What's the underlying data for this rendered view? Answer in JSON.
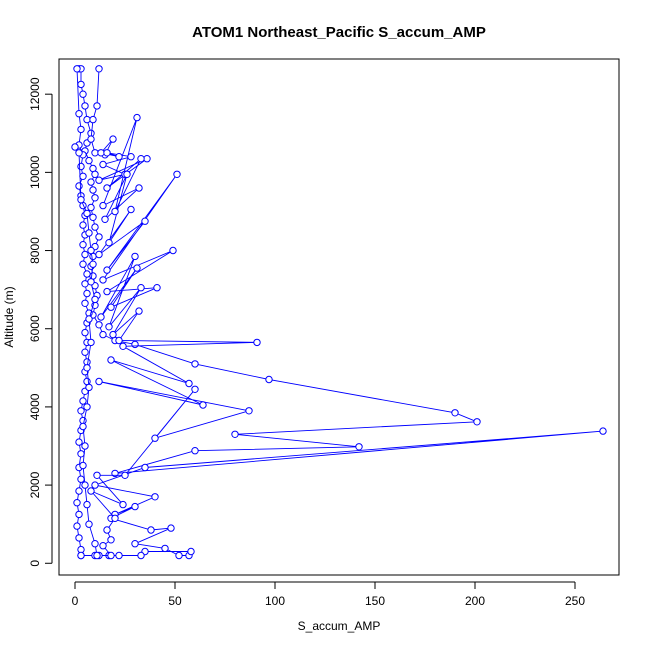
{
  "chart_data": {
    "type": "line",
    "title": "ATOM1 Northeast_Pacific S_accum_AMP",
    "xlabel": "S_accum_AMP",
    "ylabel": "Altitude (m)",
    "xlim": [
      -8,
      272
    ],
    "ylim": [
      -300,
      12900
    ],
    "xticks": [
      0,
      50,
      100,
      150,
      200,
      250
    ],
    "yticks": [
      0,
      2000,
      4000,
      6000,
      8000,
      10000,
      12000
    ],
    "grid": false,
    "legend": "none",
    "color": "#0000ff",
    "marker": "open-circle",
    "series": [
      {
        "values": [
          {
            "x": 2,
            "y": 12650
          },
          {
            "x": 3,
            "y": 12650
          },
          {
            "x": 3,
            "y": 12250
          },
          {
            "x": 4,
            "y": 12000
          },
          {
            "x": 5,
            "y": 11700
          },
          {
            "x": 6,
            "y": 11350
          },
          {
            "x": 8,
            "y": 11000
          },
          {
            "x": 6,
            "y": 10750
          },
          {
            "x": 5,
            "y": 10550
          },
          {
            "x": 7,
            "y": 10300
          },
          {
            "x": 9,
            "y": 10100
          },
          {
            "x": 10,
            "y": 9950
          },
          {
            "x": 8,
            "y": 9750
          },
          {
            "x": 9,
            "y": 9550
          },
          {
            "x": 10,
            "y": 9350
          },
          {
            "x": 8,
            "y": 9100
          },
          {
            "x": 9,
            "y": 8850
          },
          {
            "x": 10,
            "y": 8600
          },
          {
            "x": 12,
            "y": 8350
          },
          {
            "x": 10,
            "y": 8100
          },
          {
            "x": 9,
            "y": 7850
          },
          {
            "x": 8,
            "y": 7600
          },
          {
            "x": 9,
            "y": 7350
          },
          {
            "x": 10,
            "y": 7100
          },
          {
            "x": 11,
            "y": 6850
          },
          {
            "x": 10,
            "y": 6600
          },
          {
            "x": 9,
            "y": 6350
          },
          {
            "x": 12,
            "y": 6100
          },
          {
            "x": 14,
            "y": 5850
          },
          {
            "x": 20,
            "y": 5700
          },
          {
            "x": 30,
            "y": 5600
          },
          {
            "x": 60,
            "y": 5100
          },
          {
            "x": 97,
            "y": 4700
          },
          {
            "x": 190,
            "y": 3850
          },
          {
            "x": 201,
            "y": 3620
          },
          {
            "x": 80,
            "y": 3300
          },
          {
            "x": 142,
            "y": 2980
          },
          {
            "x": 60,
            "y": 2880
          },
          {
            "x": 20,
            "y": 2300
          },
          {
            "x": 264,
            "y": 3380
          },
          {
            "x": 35,
            "y": 2450
          },
          {
            "x": 10,
            "y": 2000
          },
          {
            "x": 40,
            "y": 1700
          },
          {
            "x": 20,
            "y": 1250
          },
          {
            "x": 30,
            "y": 1450
          },
          {
            "x": 18,
            "y": 1150
          },
          {
            "x": 38,
            "y": 850
          },
          {
            "x": 48,
            "y": 900
          },
          {
            "x": 30,
            "y": 500
          },
          {
            "x": 45,
            "y": 380
          },
          {
            "x": 52,
            "y": 200
          },
          {
            "x": 57,
            "y": 200
          },
          {
            "x": 58,
            "y": 300
          },
          {
            "x": 35,
            "y": 300
          },
          {
            "x": 33,
            "y": 200
          },
          {
            "x": 22,
            "y": 200
          },
          {
            "x": 17,
            "y": 200
          },
          {
            "x": 10,
            "y": 200
          },
          {
            "x": 3,
            "y": 200
          }
        ]
      },
      {
        "values": [
          {
            "x": 1,
            "y": 12650
          },
          {
            "x": 2,
            "y": 11500
          },
          {
            "x": 3,
            "y": 11100
          },
          {
            "x": 2,
            "y": 10700
          },
          {
            "x": 4,
            "y": 10450
          },
          {
            "x": 3,
            "y": 10150
          },
          {
            "x": 4,
            "y": 9900
          },
          {
            "x": 2,
            "y": 9650
          },
          {
            "x": 3,
            "y": 9400
          },
          {
            "x": 4,
            "y": 9150
          },
          {
            "x": 5,
            "y": 8900
          },
          {
            "x": 4,
            "y": 8650
          },
          {
            "x": 5,
            "y": 8400
          },
          {
            "x": 4,
            "y": 8150
          },
          {
            "x": 5,
            "y": 7900
          },
          {
            "x": 4,
            "y": 7650
          },
          {
            "x": 6,
            "y": 7400
          },
          {
            "x": 5,
            "y": 7150
          },
          {
            "x": 6,
            "y": 6900
          },
          {
            "x": 5,
            "y": 6650
          },
          {
            "x": 7,
            "y": 6400
          },
          {
            "x": 6,
            "y": 6150
          },
          {
            "x": 5,
            "y": 5900
          },
          {
            "x": 6,
            "y": 5650
          },
          {
            "x": 5,
            "y": 5400
          },
          {
            "x": 6,
            "y": 5150
          },
          {
            "x": 5,
            "y": 4900
          },
          {
            "x": 6,
            "y": 4650
          },
          {
            "x": 5,
            "y": 4400
          },
          {
            "x": 4,
            "y": 4150
          },
          {
            "x": 3,
            "y": 3900
          },
          {
            "x": 4,
            "y": 3650
          },
          {
            "x": 3,
            "y": 3400
          },
          {
            "x": 2,
            "y": 3100
          },
          {
            "x": 3,
            "y": 2800
          },
          {
            "x": 2,
            "y": 2450
          },
          {
            "x": 3,
            "y": 2150
          },
          {
            "x": 2,
            "y": 1850
          },
          {
            "x": 1,
            "y": 1550
          },
          {
            "x": 2,
            "y": 1250
          },
          {
            "x": 1,
            "y": 950
          },
          {
            "x": 2,
            "y": 650
          },
          {
            "x": 3,
            "y": 350
          },
          {
            "x": 3,
            "y": 200
          }
        ]
      },
      {
        "values": [
          {
            "x": 12,
            "y": 12650
          },
          {
            "x": 11,
            "y": 11700
          },
          {
            "x": 9,
            "y": 11350
          },
          {
            "x": 8,
            "y": 10850
          },
          {
            "x": 10,
            "y": 10500
          },
          {
            "x": 15,
            "y": 10450
          },
          {
            "x": 19,
            "y": 10850
          },
          {
            "x": 13,
            "y": 10500
          },
          {
            "x": 22,
            "y": 10400
          },
          {
            "x": 16,
            "y": 10500
          },
          {
            "x": 28,
            "y": 10400
          },
          {
            "x": 14,
            "y": 10200
          },
          {
            "x": 25,
            "y": 9950
          },
          {
            "x": 12,
            "y": 9800
          },
          {
            "x": 36,
            "y": 10350
          },
          {
            "x": 16,
            "y": 9600
          },
          {
            "x": 33,
            "y": 10350
          },
          {
            "x": 20,
            "y": 9000
          },
          {
            "x": 31,
            "y": 11400
          },
          {
            "x": 14,
            "y": 9150
          },
          {
            "x": 32,
            "y": 9600
          },
          {
            "x": 15,
            "y": 8800
          },
          {
            "x": 26,
            "y": 9950
          },
          {
            "x": 17,
            "y": 8200
          },
          {
            "x": 28,
            "y": 9050
          },
          {
            "x": 12,
            "y": 7900
          },
          {
            "x": 35,
            "y": 8750
          },
          {
            "x": 16,
            "y": 7500
          },
          {
            "x": 51,
            "y": 9950
          },
          {
            "x": 14,
            "y": 7250
          },
          {
            "x": 49,
            "y": 8000
          },
          {
            "x": 16,
            "y": 6950
          },
          {
            "x": 41,
            "y": 7050
          },
          {
            "x": 18,
            "y": 6550
          },
          {
            "x": 31,
            "y": 7550
          },
          {
            "x": 13,
            "y": 6300
          },
          {
            "x": 30,
            "y": 7850
          },
          {
            "x": 17,
            "y": 6050
          },
          {
            "x": 33,
            "y": 7050
          },
          {
            "x": 19,
            "y": 5850
          },
          {
            "x": 32,
            "y": 6450
          },
          {
            "x": 22,
            "y": 5700
          },
          {
            "x": 91,
            "y": 5650
          },
          {
            "x": 24,
            "y": 5550
          },
          {
            "x": 57,
            "y": 4600
          },
          {
            "x": 18,
            "y": 5200
          },
          {
            "x": 64,
            "y": 4050
          },
          {
            "x": 12,
            "y": 4650
          },
          {
            "x": 87,
            "y": 3900
          },
          {
            "x": 40,
            "y": 3200
          },
          {
            "x": 60,
            "y": 4450
          },
          {
            "x": 25,
            "y": 2250
          },
          {
            "x": 11,
            "y": 2250
          },
          {
            "x": 24,
            "y": 1500
          },
          {
            "x": 8,
            "y": 1850
          },
          {
            "x": 20,
            "y": 1150
          },
          {
            "x": 16,
            "y": 850
          },
          {
            "x": 18,
            "y": 600
          },
          {
            "x": 14,
            "y": 450
          },
          {
            "x": 18,
            "y": 200
          },
          {
            "x": 12,
            "y": 200
          }
        ]
      },
      {
        "values": [
          {
            "x": 0,
            "y": 10650
          },
          {
            "x": 2,
            "y": 10500
          },
          {
            "x": 3,
            "y": 9300
          },
          {
            "x": 6,
            "y": 8950
          },
          {
            "x": 7,
            "y": 8450
          },
          {
            "x": 8,
            "y": 8000
          },
          {
            "x": 9,
            "y": 7650
          },
          {
            "x": 8,
            "y": 7200
          },
          {
            "x": 10,
            "y": 6750
          },
          {
            "x": 7,
            "y": 6250
          },
          {
            "x": 8,
            "y": 5650
          },
          {
            "x": 6,
            "y": 5000
          },
          {
            "x": 7,
            "y": 4500
          },
          {
            "x": 6,
            "y": 4000
          },
          {
            "x": 4,
            "y": 3500
          },
          {
            "x": 5,
            "y": 3000
          },
          {
            "x": 4,
            "y": 2500
          },
          {
            "x": 5,
            "y": 2000
          },
          {
            "x": 6,
            "y": 1500
          },
          {
            "x": 7,
            "y": 1000
          },
          {
            "x": 10,
            "y": 500
          },
          {
            "x": 11,
            "y": 200
          }
        ]
      }
    ]
  }
}
